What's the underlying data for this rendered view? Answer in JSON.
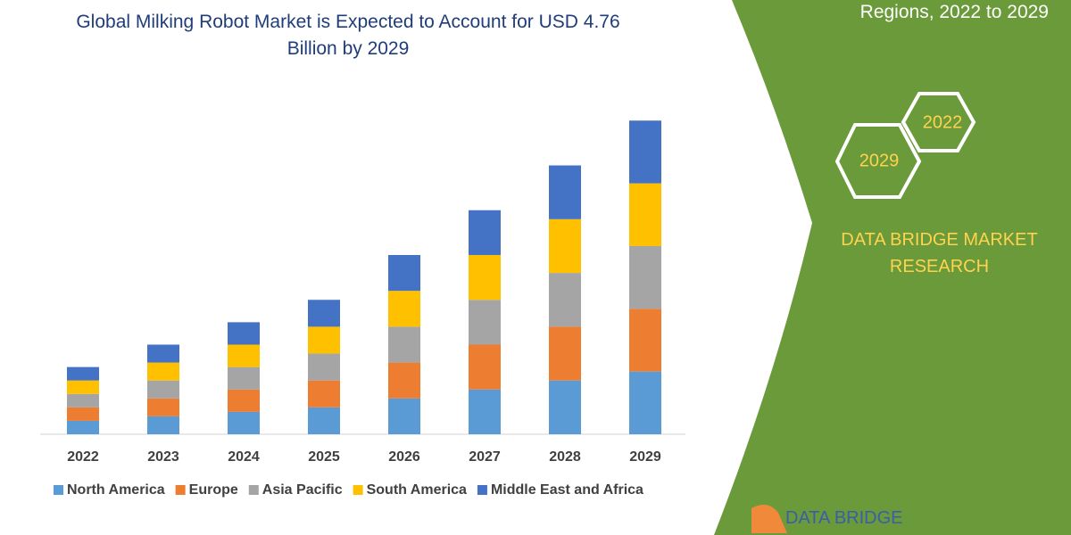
{
  "chart_data": {
    "type": "stacked-bar",
    "title": "Global Milking Robot Market is Expected to Account for USD 4.76 Billion by 2029",
    "categories": [
      "2022",
      "2023",
      "2024",
      "2025",
      "2026",
      "2027",
      "2028",
      "2029"
    ],
    "series": [
      {
        "name": "North America",
        "color": "#5b9bd5",
        "values": [
          15,
          20,
          25,
          30,
          40,
          50,
          60,
          70
        ]
      },
      {
        "name": "Europe",
        "color": "#ed7d31",
        "values": [
          15,
          20,
          25,
          30,
          40,
          50,
          60,
          70
        ]
      },
      {
        "name": "Asia Pacific",
        "color": "#a5a5a5",
        "values": [
          15,
          20,
          25,
          30,
          40,
          50,
          60,
          70
        ]
      },
      {
        "name": "South America",
        "color": "#ffc000",
        "values": [
          15,
          20,
          25,
          30,
          40,
          50,
          60,
          70
        ]
      },
      {
        "name": "Middle East and Africa",
        "color": "#4472c4",
        "values": [
          15,
          20,
          25,
          30,
          40,
          50,
          60,
          70
        ]
      }
    ],
    "legend": "bottom"
  },
  "panel": {
    "header": "Regions, 2022 to 2029",
    "hex_right": "2022",
    "hex_left": "2029",
    "brand": "DATA BRIDGE MARKET RESEARCH",
    "logo": "DATA BRIDGE"
  }
}
